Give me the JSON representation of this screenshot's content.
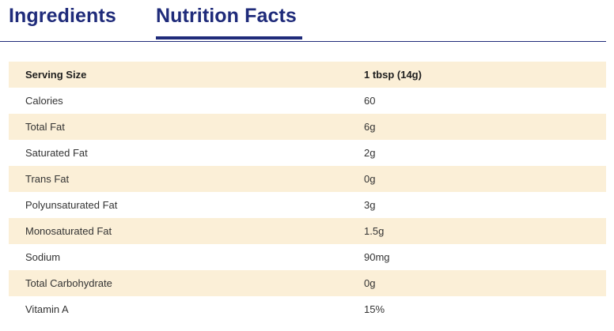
{
  "tabs": [
    {
      "label": "Ingredients",
      "active": false
    },
    {
      "label": "Nutrition Facts",
      "active": true
    }
  ],
  "colors": {
    "brand_navy": "#1f2b7a",
    "row_shade": "#fbefd7",
    "text": "#333333"
  },
  "table": {
    "header": {
      "label": "Serving Size",
      "value": "1 tbsp (14g)"
    },
    "rows": [
      {
        "label": "Calories",
        "value": "60"
      },
      {
        "label": "Total Fat",
        "value": "6g"
      },
      {
        "label": "Saturated Fat",
        "value": "2g"
      },
      {
        "label": "Trans Fat",
        "value": "0g"
      },
      {
        "label": "Polyunsaturated Fat",
        "value": "3g"
      },
      {
        "label": "Monosaturated Fat",
        "value": "1.5g"
      },
      {
        "label": "Sodium",
        "value": "90mg"
      },
      {
        "label": "Total Carbohydrate",
        "value": "0g"
      },
      {
        "label": "Vitamin A",
        "value": "15%"
      }
    ]
  }
}
